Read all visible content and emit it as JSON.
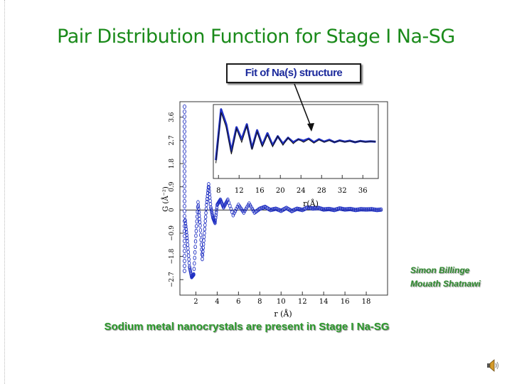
{
  "slide": {
    "title": "Pair Distribution Function for Stage I Na-SG",
    "callout": "Fit of Na(s) structure",
    "credits": [
      "Simon Billinge",
      "Mouath Shatnawi"
    ],
    "caption": "Sodium metal nanocrystals are present in Stage I Na-SG"
  },
  "colors": {
    "title": "#1a8a1a",
    "data": "#1f2fc2",
    "fit": "#111111",
    "callout_text": "#1c2a9c"
  },
  "icons": {
    "speaker": "speaker-icon"
  },
  "chart_data": [
    {
      "type": "scatter",
      "title": "",
      "xlabel": "r (Å)",
      "ylabel": "G (Å⁻²)",
      "xlim": [
        0.5,
        20
      ],
      "ylim": [
        -3.3,
        4.2
      ],
      "xticks": [
        "2",
        "4",
        "6",
        "8",
        "10",
        "12",
        "14",
        "16",
        "18"
      ],
      "yticks": [
        "−2.7",
        "−1.8",
        "−0.9",
        "0",
        "0.9",
        "1.8",
        "2.7",
        "3.6"
      ],
      "series": [
        {
          "style": "circles",
          "x": [
            1.0,
            1.2,
            1.4,
            1.6,
            1.8,
            2.0,
            2.2,
            2.4,
            2.6,
            2.8,
            3.0,
            3.2,
            3.4,
            3.6,
            3.8,
            4.0,
            4.3,
            4.6,
            5.0,
            5.5,
            6.0,
            6.5,
            7.0,
            7.5,
            8.0,
            8.5,
            9.0,
            9.5,
            10.0,
            10.5,
            11.0,
            11.5,
            12.0,
            12.5,
            13.0,
            13.5,
            14.0,
            14.5,
            15.0,
            15.5,
            16.0,
            16.5,
            17.0,
            17.5,
            18.0,
            18.5,
            19.0,
            19.5
          ],
          "y": [
            -0.4,
            -1.2,
            -2.2,
            -2.6,
            -2.5,
            -1.0,
            0.3,
            -0.6,
            -1.9,
            -0.9,
            0.2,
            1.0,
            0.1,
            -0.3,
            -0.5,
            0.2,
            0.4,
            0.1,
            0.4,
            -0.2,
            0.2,
            -0.1,
            0.25,
            -0.1,
            0.05,
            0.12,
            0.0,
            0.05,
            -0.03,
            0.08,
            -0.04,
            0.05,
            0.0,
            0.1,
            0.06,
            0.08,
            0.02,
            0.04,
            0.0,
            0.06,
            0.02,
            0.04,
            0.0,
            0.03,
            0.02,
            0.03,
            0.0,
            0.02
          ]
        },
        {
          "style": "line",
          "x": [
            1,
            19.5
          ],
          "y": [
            0,
            0
          ]
        }
      ]
    },
    {
      "type": "line",
      "title": "",
      "xlabel": "r(Å)",
      "ylabel": "",
      "xlim": [
        7,
        39
      ],
      "xticks": [
        "8",
        "12",
        "16",
        "20",
        "24",
        "28",
        "32",
        "36"
      ],
      "series": [
        {
          "style": "data",
          "x": [
            7.5,
            8.5,
            9.5,
            10.5,
            11.5,
            12.5,
            13.5,
            14.5,
            15.5,
            16.5,
            17.5,
            18.5,
            19.5,
            20.5,
            21.5,
            22.5,
            23.5,
            24.5,
            25.5,
            26.5,
            27.5,
            28.5,
            29.5,
            30.5,
            31.5,
            32.5,
            33.5,
            34.5,
            35.5,
            36.5,
            37.5,
            38.5
          ],
          "y": [
            -0.6,
            1.1,
            0.6,
            -0.3,
            0.5,
            0.1,
            0.6,
            -0.2,
            0.4,
            -0.1,
            0.3,
            -0.1,
            0.2,
            -0.05,
            0.15,
            0.0,
            0.1,
            0.05,
            0.12,
            0.0,
            0.1,
            0.02,
            0.08,
            0.0,
            0.06,
            0.02,
            0.05,
            0.0,
            0.04,
            0.02,
            0.03,
            0.02
          ]
        },
        {
          "style": "fit",
          "x": [
            7.5,
            8.5,
            9.5,
            10.5,
            11.5,
            12.5,
            13.5,
            14.5,
            15.5,
            16.5,
            17.5,
            18.5,
            19.5,
            20.5,
            21.5,
            22.5,
            23.5,
            24.5,
            25.5,
            26.5,
            27.5,
            28.5,
            29.5,
            30.5,
            31.5,
            32.5,
            33.5,
            34.5,
            35.5,
            36.5,
            37.5,
            38.5
          ],
          "y": [
            -0.7,
            1.0,
            0.5,
            -0.4,
            0.45,
            0.0,
            0.55,
            -0.25,
            0.35,
            -0.15,
            0.25,
            -0.15,
            0.2,
            -0.1,
            0.15,
            -0.05,
            0.1,
            0.0,
            0.1,
            -0.03,
            0.08,
            0.0,
            0.06,
            0.0,
            0.05,
            0.0,
            0.04,
            0.0,
            0.04,
            0.0,
            0.03,
            0.02
          ]
        }
      ]
    }
  ]
}
